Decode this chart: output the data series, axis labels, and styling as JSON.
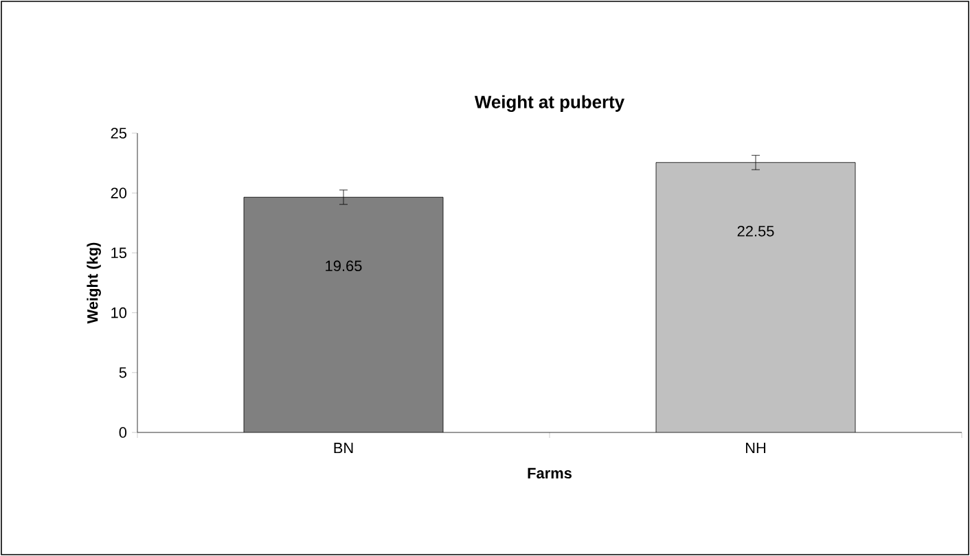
{
  "chart_data": {
    "type": "bar",
    "title": "Weight at puberty",
    "xlabel": "Farms",
    "ylabel": "Weight (kg)",
    "categories": [
      "BN",
      "NH"
    ],
    "values": [
      19.65,
      22.55
    ],
    "colors": [
      "#808080",
      "#c0c0c0"
    ],
    "errors": [
      0.6,
      0.6
    ],
    "data_labels": true,
    "ylim": [
      0,
      25
    ],
    "yticks": [
      0,
      5,
      10,
      15,
      20,
      25
    ],
    "grid": false
  }
}
